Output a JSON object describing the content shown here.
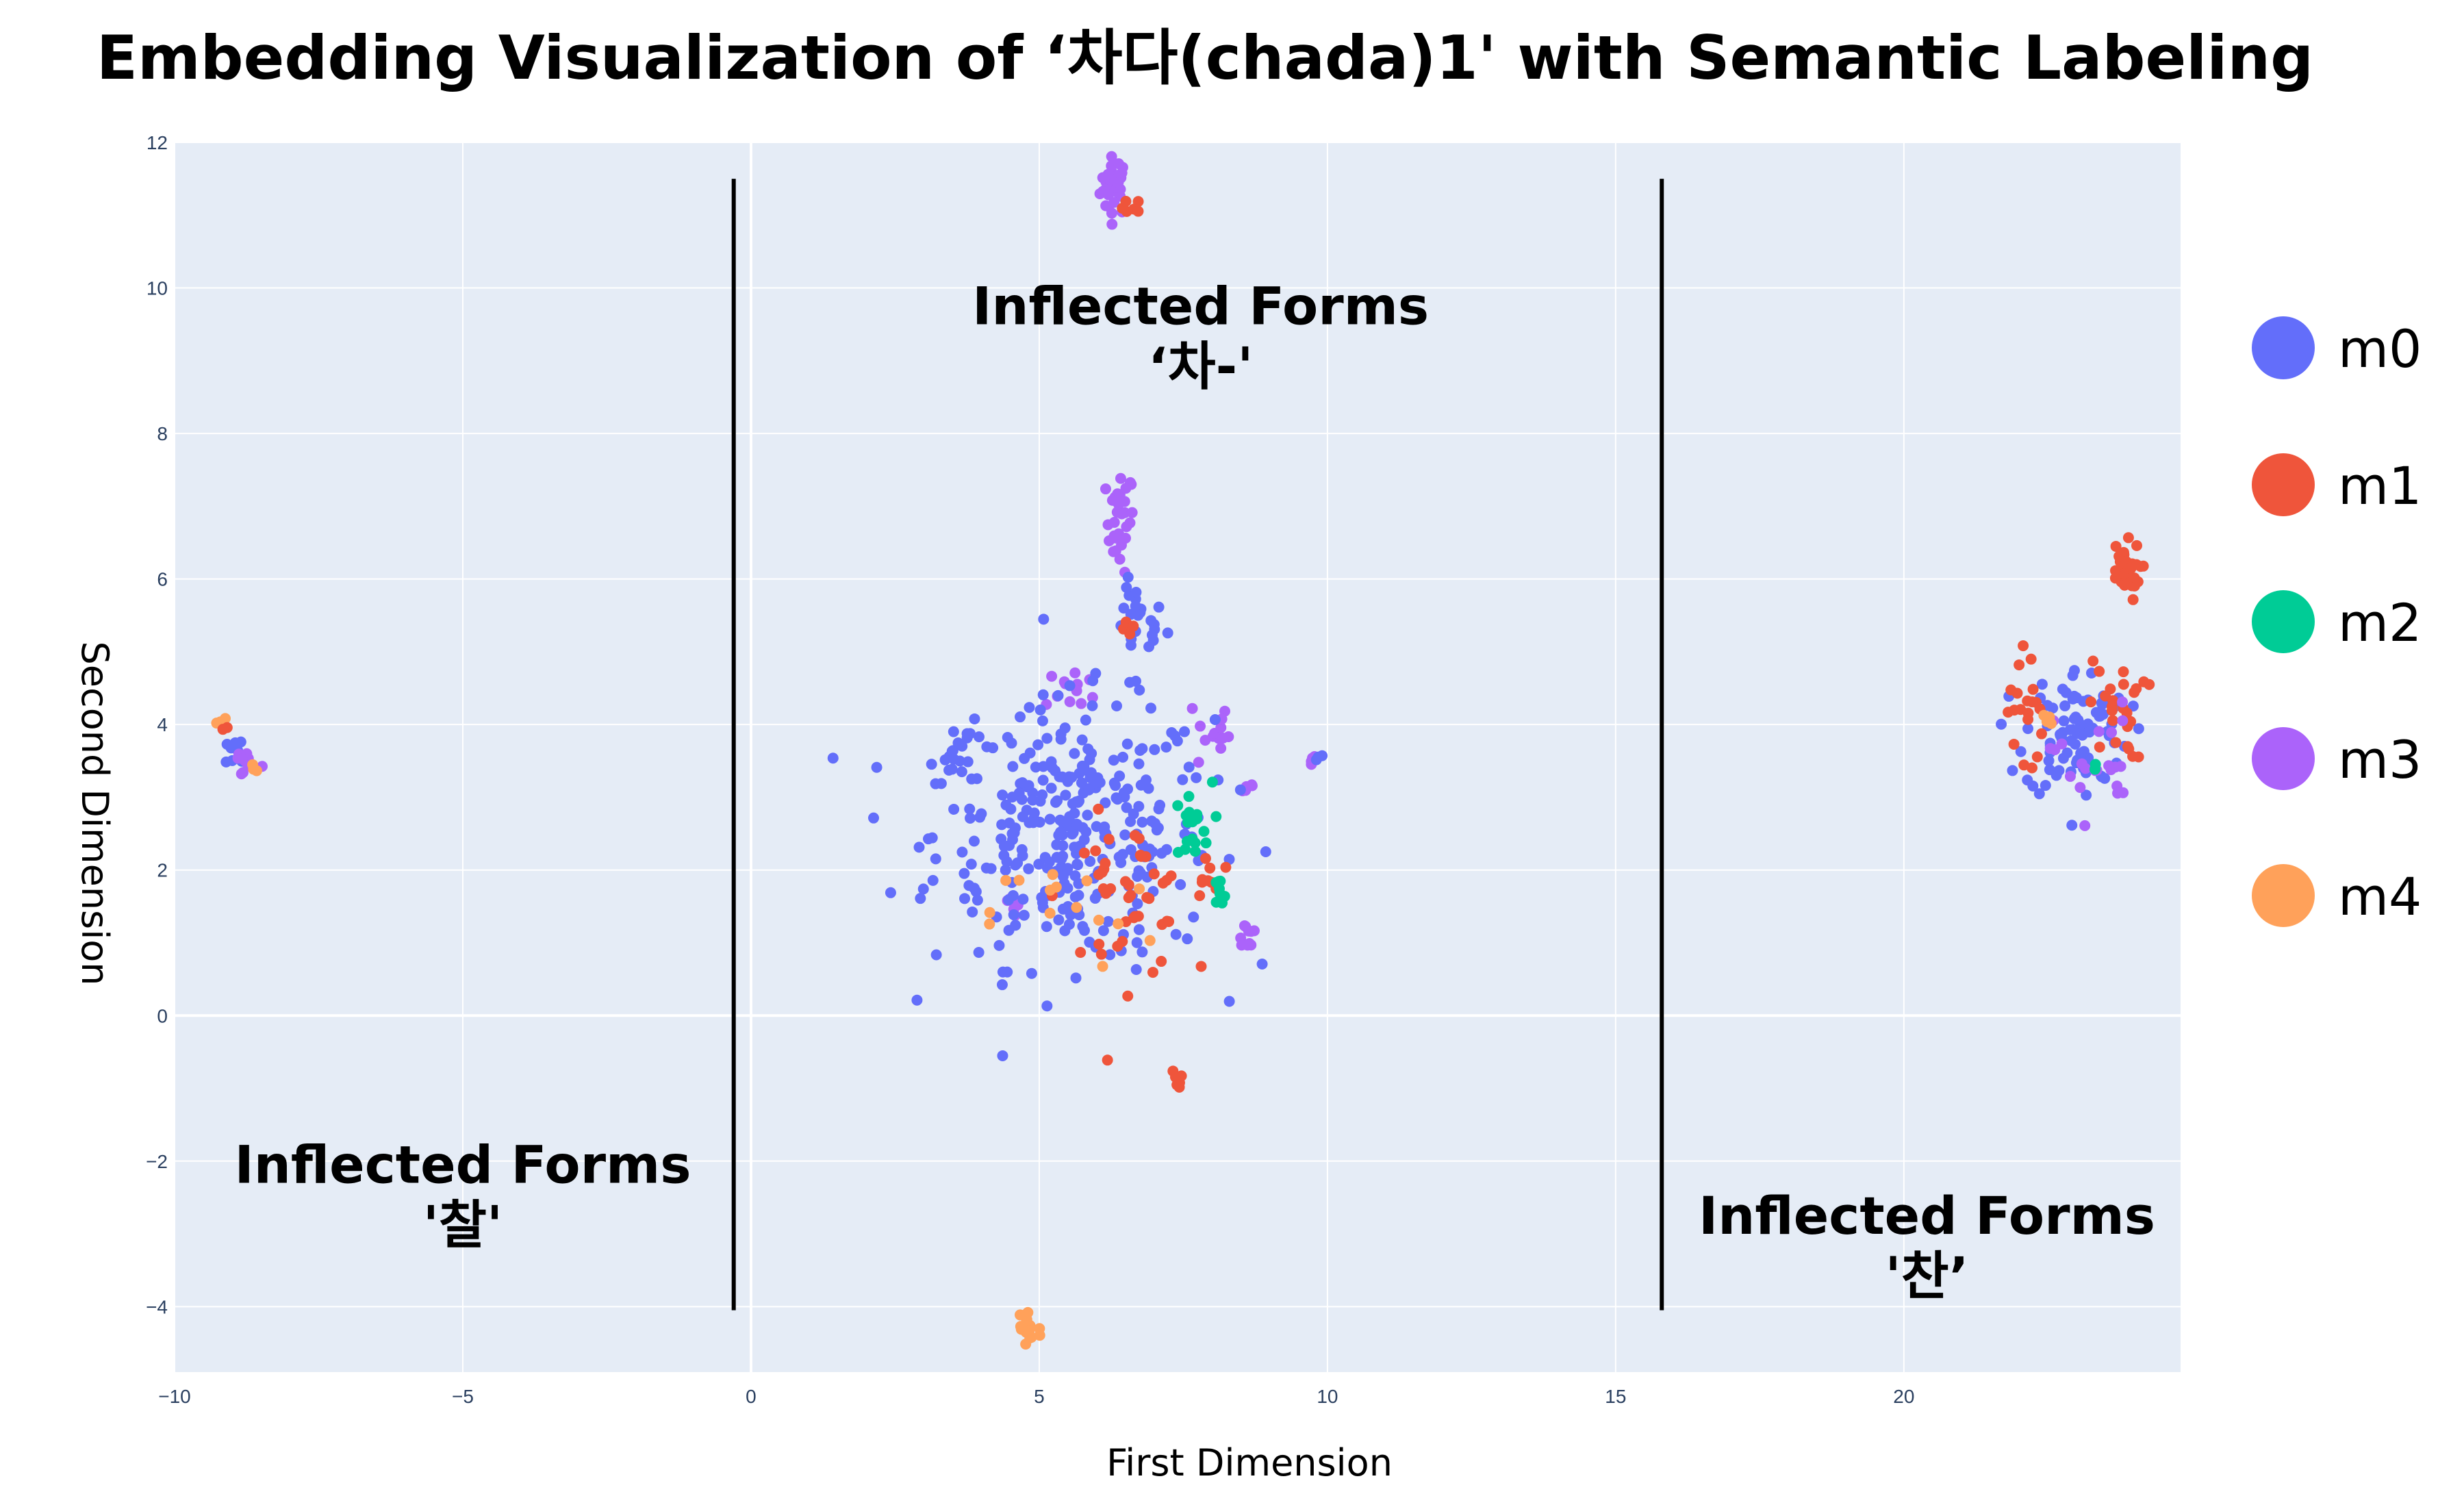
{
  "chart_data": {
    "type": "scatter",
    "title": "Embedding Visualization of ‘차다(chada)1' with Semantic Labeling",
    "xlabel": "First Dimension",
    "ylabel": "Second Dimension",
    "xlim": [
      -10,
      24.8
    ],
    "ylim": [
      -4.9,
      12.0
    ],
    "x_ticks": [
      "−10",
      "−5",
      "0",
      "5",
      "10",
      "15",
      "20"
    ],
    "x_tick_values": [
      -10,
      -5,
      0,
      5,
      10,
      15,
      20
    ],
    "y_ticks": [
      "−4",
      "−2",
      "0",
      "2",
      "4",
      "6",
      "8",
      "10",
      "12"
    ],
    "y_tick_values": [
      -4,
      -2,
      0,
      2,
      4,
      6,
      8,
      10,
      12
    ],
    "grid": true,
    "legend_position": "right",
    "series": [
      {
        "name": "m0",
        "color": "#636efa"
      },
      {
        "name": "m1",
        "color": "#ef553b"
      },
      {
        "name": "m2",
        "color": "#00cc96"
      },
      {
        "name": "m3",
        "color": "#ab63fa"
      },
      {
        "name": "m4",
        "color": "#ffa15a"
      }
    ],
    "divider_lines": [
      {
        "x": -0.3,
        "y_from": -4.05,
        "y_to": 11.5
      },
      {
        "x": 15.8,
        "y_from": -4.05,
        "y_to": 11.5
      }
    ],
    "annotations": [
      {
        "line1": "Inflected Forms",
        "line2": "‘차-'",
        "x": 7.8,
        "y": 9.5
      },
      {
        "line1": "Inflected Forms",
        "line2": "'찰'",
        "x": -5.0,
        "y": -2.3
      },
      {
        "line1": "Inflected Forms",
        "line2": "'찬’",
        "x": 20.4,
        "y": -3.0
      }
    ],
    "clusters": [
      {
        "series": 3,
        "cx": 6.3,
        "cy": 11.4,
        "sx": 0.12,
        "sy": 0.2,
        "n": 35
      },
      {
        "series": 1,
        "cx": 6.6,
        "cy": 11.1,
        "sx": 0.08,
        "sy": 0.06,
        "n": 6
      },
      {
        "series": 3,
        "cx": 6.4,
        "cy": 6.8,
        "sx": 0.12,
        "sy": 0.35,
        "n": 30
      },
      {
        "series": 0,
        "cx": 6.7,
        "cy": 5.4,
        "sx": 0.25,
        "sy": 0.25,
        "n": 25
      },
      {
        "series": 1,
        "cx": 6.6,
        "cy": 5.3,
        "sx": 0.08,
        "sy": 0.05,
        "n": 4
      },
      {
        "series": 3,
        "cx": 5.6,
        "cy": 4.5,
        "sx": 0.25,
        "sy": 0.15,
        "n": 12
      },
      {
        "series": 3,
        "cx": 8.0,
        "cy": 3.9,
        "sx": 0.15,
        "sy": 0.3,
        "n": 14
      },
      {
        "series": 3,
        "cx": 9.7,
        "cy": 3.5,
        "sx": 0.05,
        "sy": 0.04,
        "n": 4
      },
      {
        "series": 0,
        "cx": 9.8,
        "cy": 3.6,
        "sx": 0.1,
        "sy": 0.05,
        "n": 3
      },
      {
        "series": 3,
        "cx": 8.6,
        "cy": 1.1,
        "sx": 0.1,
        "sy": 0.12,
        "n": 10
      },
      {
        "series": 3,
        "cx": 8.6,
        "cy": 3.15,
        "sx": 0.08,
        "sy": 0.05,
        "n": 5
      },
      {
        "series": 3,
        "cx": 4.6,
        "cy": 1.5,
        "sx": 0.15,
        "sy": 0.1,
        "n": 8
      },
      {
        "series": 0,
        "cx": 5.6,
        "cy": 2.5,
        "sx": 1.2,
        "sy": 0.9,
        "n": 330
      },
      {
        "series": 0,
        "cx": 3.7,
        "cy": 3.6,
        "sx": 0.3,
        "sy": 0.2,
        "n": 18
      },
      {
        "series": 1,
        "cx": 6.5,
        "cy": 1.6,
        "sx": 0.55,
        "sy": 0.55,
        "n": 45
      },
      {
        "series": 1,
        "cx": 7.9,
        "cy": 1.9,
        "sx": 0.1,
        "sy": 0.15,
        "n": 8
      },
      {
        "series": 1,
        "cx": 7.4,
        "cy": -0.85,
        "sx": 0.05,
        "sy": 0.06,
        "n": 6
      },
      {
        "series": 2,
        "cx": 7.6,
        "cy": 2.6,
        "sx": 0.2,
        "sy": 0.3,
        "n": 20
      },
      {
        "series": 2,
        "cx": 8.1,
        "cy": 1.6,
        "sx": 0.08,
        "sy": 0.15,
        "n": 8
      },
      {
        "series": 4,
        "cx": 5.6,
        "cy": 1.4,
        "sx": 0.7,
        "sy": 0.4,
        "n": 15
      },
      {
        "series": 4,
        "cx": 4.8,
        "cy": -4.3,
        "sx": 0.12,
        "sy": 0.22,
        "n": 20
      },
      {
        "series": 0,
        "cx": -8.9,
        "cy": 3.6,
        "sx": 0.12,
        "sy": 0.12,
        "n": 12
      },
      {
        "series": 3,
        "cx": -8.8,
        "cy": 3.5,
        "sx": 0.15,
        "sy": 0.12,
        "n": 10
      },
      {
        "series": 4,
        "cx": -9.2,
        "cy": 4.1,
        "sx": 0.05,
        "sy": 0.05,
        "n": 3
      },
      {
        "series": 4,
        "cx": -8.6,
        "cy": 3.4,
        "sx": 0.05,
        "sy": 0.05,
        "n": 3
      },
      {
        "series": 1,
        "cx": -9.1,
        "cy": 4.0,
        "sx": 0.05,
        "sy": 0.05,
        "n": 2
      },
      {
        "series": 0,
        "cx": 23.0,
        "cy": 3.9,
        "sx": 0.45,
        "sy": 0.45,
        "n": 90
      },
      {
        "series": 1,
        "cx": 23.8,
        "cy": 6.1,
        "sx": 0.15,
        "sy": 0.2,
        "n": 30
      },
      {
        "series": 1,
        "cx": 23.7,
        "cy": 4.2,
        "sx": 0.25,
        "sy": 0.35,
        "n": 25
      },
      {
        "series": 1,
        "cx": 22.1,
        "cy": 4.2,
        "sx": 0.15,
        "sy": 0.5,
        "n": 20
      },
      {
        "series": 3,
        "cx": 23.3,
        "cy": 3.5,
        "sx": 0.35,
        "sy": 0.4,
        "n": 22
      },
      {
        "series": 2,
        "cx": 23.3,
        "cy": 3.4,
        "sx": 0.05,
        "sy": 0.05,
        "n": 3
      },
      {
        "series": 4,
        "cx": 22.5,
        "cy": 4.1,
        "sx": 0.1,
        "sy": 0.1,
        "n": 4
      }
    ]
  }
}
